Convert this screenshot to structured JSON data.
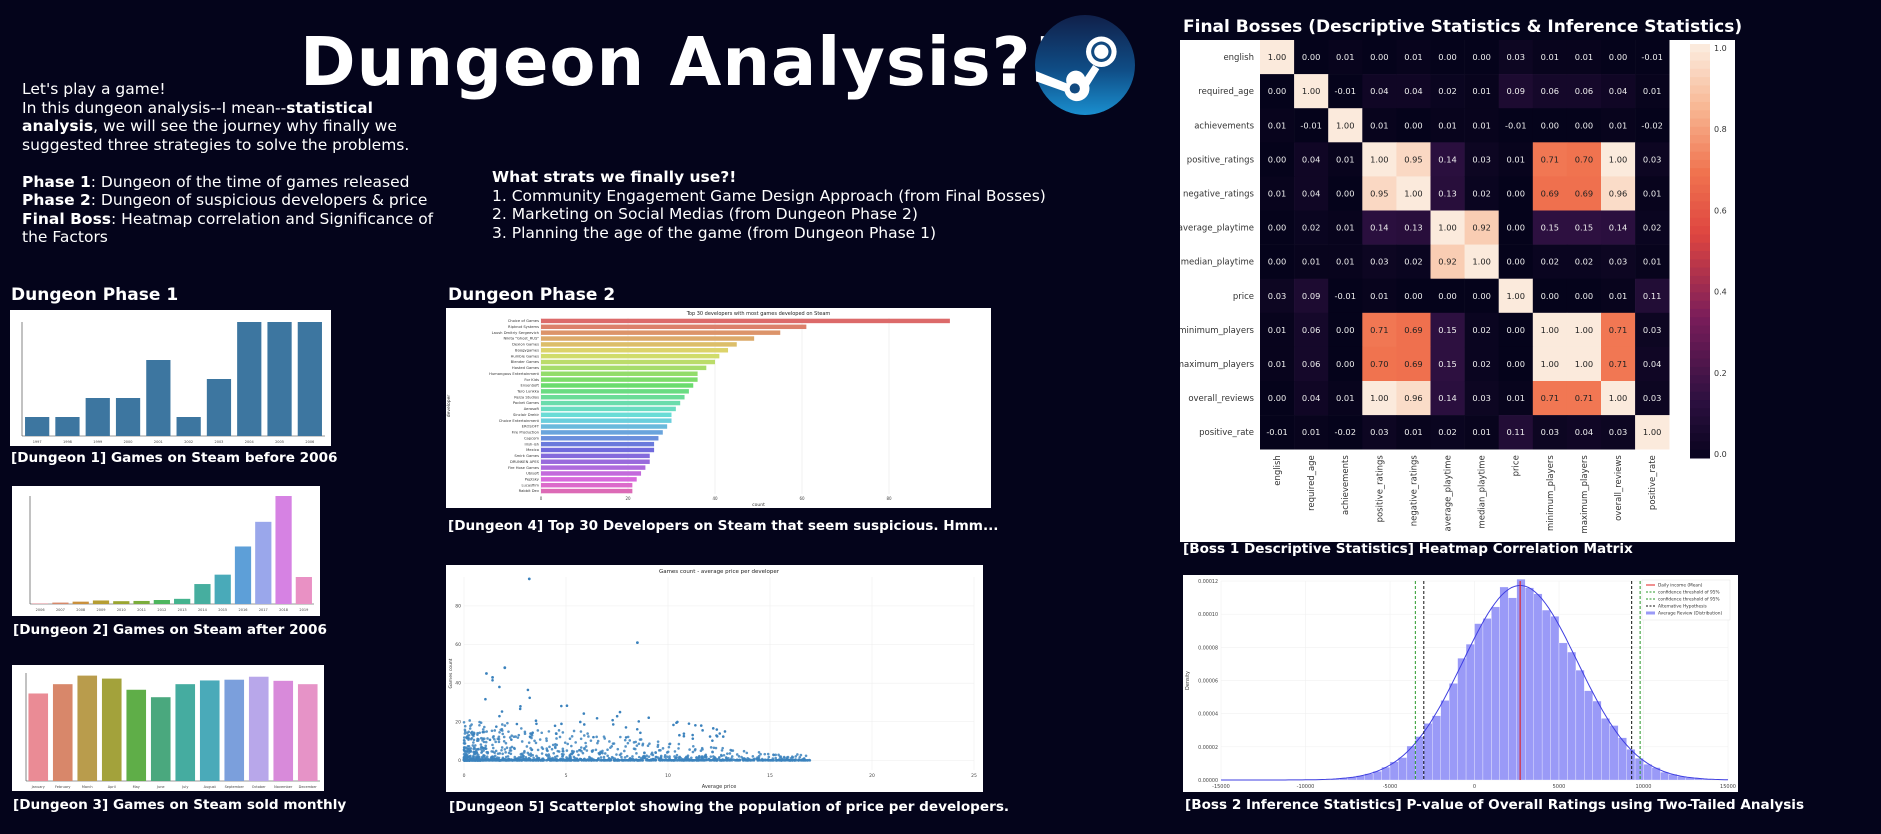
{
  "header": {
    "title": "Dungeon Analysis?!",
    "logo_icon": "steam-logo-icon"
  },
  "intro": {
    "line1": "Let's play a game!",
    "line2_pre": "In this dungeon analysis--I mean--",
    "line2_bold": "statistical analysis",
    "line2_post": ", we will see the journey why finally we suggested three strategies to solve the problems.",
    "phase1_label": "Phase 1",
    "phase1_text": ": Dungeon of the time of games released",
    "phase2_label": "Phase 2",
    "phase2_text": ": Dungeon of suspicious developers & price",
    "boss_label": "Final Boss",
    "boss_text": ": Heatmap correlation and Significance of the Factors"
  },
  "strategies": {
    "heading": "What strats we finally use?!",
    "items": [
      "1. Community Engagement Game Design Approach (from Final Bosses)",
      "2. Marketing on Social Medias (from Dungeon Phase 2)",
      "3. Planning the age of the game (from Dungeon Phase 1)"
    ]
  },
  "sections": {
    "phase1": "Dungeon Phase 1",
    "phase2": "Dungeon Phase 2",
    "final": "Final Bosses (Descriptive Statistics & Inference Statistics)"
  },
  "captions": {
    "d1": "[Dungeon 1] Games on Steam before 2006",
    "d2": "[Dungeon 2] Games on Steam after 2006",
    "d3": "[Dungeon 3] Games on Steam sold monthly",
    "d4": "[Dungeon 4] Top 30 Developers on Steam that seem suspicious. Hmm...",
    "d5": "[Dungeon 5] Scatterplot showing the population of price per developers.",
    "b1": "[Boss 1 Descriptive Statistics] Heatmap Correlation Matrix",
    "b2": "[Boss 2 Inference Statistics] P-value of Overall Ratings using Two-Tailed Analysis"
  },
  "colors": {
    "background": "#04041b",
    "bar_blue": "#3d76a0",
    "scatter_blue": "#3b82bd",
    "hist_fill": "#9a9af7",
    "hist_line": "#3f3fe0"
  },
  "chart_data": [
    {
      "id": "d1",
      "type": "bar",
      "title": "",
      "categories": [
        "1997",
        "1998",
        "1999",
        "2000",
        "2001",
        "2002",
        "2003",
        "2004",
        "2005",
        "2006"
      ],
      "values": [
        1,
        1,
        2,
        2,
        4,
        1,
        3,
        6,
        6,
        6
      ],
      "ylim": [
        0,
        6
      ],
      "xlabel": "",
      "ylabel": ""
    },
    {
      "id": "d2",
      "type": "bar",
      "title": "",
      "categories": [
        "2006",
        "2007",
        "2008",
        "2009",
        "2010",
        "2011",
        "2012",
        "2013",
        "2014",
        "2015",
        "2016",
        "2017",
        "2018",
        "2019"
      ],
      "values": [
        20,
        60,
        100,
        150,
        120,
        130,
        170,
        220,
        850,
        1250,
        2450,
        3500,
        4600,
        1150
      ],
      "colors": [
        "#e0838d",
        "#d7896b",
        "#c9903d",
        "#b59d32",
        "#9aa531",
        "#7bad3c",
        "#4db65e",
        "#44b38e",
        "#46ae9f",
        "#49aab9",
        "#5d9fd8",
        "#9aa7eb",
        "#d682e3",
        "#e991c4"
      ],
      "ylim": [
        0,
        4600
      ]
    },
    {
      "id": "d3",
      "type": "bar",
      "title": "",
      "categories": [
        "January",
        "February",
        "March",
        "April",
        "May",
        "June",
        "July",
        "August",
        "September",
        "October",
        "November",
        "December"
      ],
      "values": [
        2350,
        2600,
        2830,
        2750,
        2450,
        2250,
        2600,
        2700,
        2720,
        2800,
        2690,
        2600
      ],
      "colors": [
        "#ea8b95",
        "#d8876a",
        "#b99c4c",
        "#a3a23b",
        "#5fae48",
        "#4aa87e",
        "#45aca0",
        "#4aaab9",
        "#7b9fdc",
        "#b8a7ea",
        "#d88ada",
        "#e693c7"
      ],
      "ylim": [
        0,
        2900
      ]
    },
    {
      "id": "d4",
      "type": "bar",
      "orientation": "horizontal",
      "title": "Top 30 developers with most games developed on Steam",
      "xlabel": "count",
      "ylabel": "developer",
      "categories": [
        "Choice of Games",
        "Ripknot Systems",
        "Laush Dmitriy Sergeevich",
        "Nikita \"Ghost_RUS\"",
        "Dexion Games",
        "Boogygames",
        "Humble Games",
        "Blender Games",
        "Hosted Games",
        "Humongous Entertainment",
        "For Kids",
        "EnsenSoft",
        "Tero Lunkka",
        "Reiza Studios",
        "Pocket Games",
        "Aerosoft",
        "Sinclair Drekir",
        "Choice Entertainment",
        "EROSOFT",
        "Fire Production",
        "Capcom",
        "Irish-ish",
        "Mexico",
        "Smirk Games",
        "DRUNKEN APES",
        "Fire Hose Games",
        "Ubisoft",
        "Peptsky",
        "Lucasfilm",
        "Rabbit Dev"
      ],
      "values": [
        94,
        61,
        55,
        49,
        45,
        43,
        41,
        40,
        38,
        36,
        36,
        35,
        34,
        33,
        32,
        31,
        30,
        30,
        29,
        28,
        27,
        26,
        26,
        25,
        25,
        24,
        23,
        22,
        21,
        21
      ],
      "xlim": [
        0,
        100
      ]
    },
    {
      "id": "d5",
      "type": "scatter",
      "title": "Games count - average price per developer",
      "xlabel": "Average price",
      "ylabel": "Games count",
      "xlim": [
        0,
        25
      ],
      "ylim": [
        -5,
        95
      ],
      "highlights": [
        [
          3.2,
          94
        ],
        [
          8.5,
          61
        ],
        [
          1.1,
          45
        ],
        [
          2.0,
          48
        ],
        [
          1.4,
          43
        ]
      ]
    },
    {
      "id": "b1",
      "type": "heatmap",
      "labels": [
        "english",
        "required_age",
        "achievements",
        "positive_ratings",
        "negative_ratings",
        "average_playtime",
        "median_playtime",
        "price",
        "minimum_players",
        "maximum_players",
        "overall_reviews",
        "positive_rate"
      ],
      "values": [
        [
          1.0,
          -0.0,
          0.01,
          0.0,
          0.01,
          -0.0,
          -0.0,
          0.03,
          0.01,
          0.01,
          0.0,
          -0.01
        ],
        [
          -0.0,
          1.0,
          -0.01,
          0.04,
          0.04,
          0.02,
          0.01,
          0.09,
          0.06,
          0.06,
          0.04,
          0.01
        ],
        [
          0.01,
          -0.01,
          1.0,
          0.01,
          0.0,
          0.01,
          0.01,
          -0.01,
          0.0,
          0.0,
          0.01,
          -0.02
        ],
        [
          0.0,
          0.04,
          0.01,
          1.0,
          0.95,
          0.14,
          0.03,
          0.01,
          0.71,
          0.7,
          1.0,
          0.03
        ],
        [
          0.01,
          0.04,
          0.0,
          0.95,
          1.0,
          0.13,
          0.02,
          0.0,
          0.69,
          0.69,
          0.96,
          0.01
        ],
        [
          -0.0,
          0.02,
          0.01,
          0.14,
          0.13,
          1.0,
          0.92,
          -0.0,
          0.15,
          0.15,
          0.14,
          0.02
        ],
        [
          -0.0,
          0.01,
          0.01,
          0.03,
          0.02,
          0.92,
          1.0,
          -0.0,
          0.02,
          0.02,
          0.03,
          0.01
        ],
        [
          0.03,
          0.09,
          -0.01,
          0.01,
          0.0,
          -0.0,
          -0.0,
          1.0,
          0.0,
          0.0,
          0.01,
          0.11
        ],
        [
          0.01,
          0.06,
          0.0,
          0.71,
          0.69,
          0.15,
          0.02,
          0.0,
          1.0,
          1.0,
          0.71,
          0.03
        ],
        [
          0.01,
          0.06,
          0.0,
          0.7,
          0.69,
          0.15,
          0.02,
          0.0,
          1.0,
          1.0,
          0.71,
          0.04
        ],
        [
          0.0,
          0.04,
          0.01,
          1.0,
          0.96,
          0.14,
          0.03,
          0.01,
          0.71,
          0.71,
          1.0,
          0.03
        ],
        [
          -0.01,
          0.01,
          -0.02,
          0.03,
          0.01,
          0.02,
          0.01,
          0.11,
          0.03,
          0.04,
          0.03,
          1.0
        ]
      ],
      "colorbar_ticks": [
        "1.0",
        "0.8",
        "0.6",
        "0.4",
        "0.2",
        "0.0"
      ]
    },
    {
      "id": "b2",
      "type": "histogram",
      "xlabel": "",
      "ylabel": "Density",
      "xlim": [
        -15000,
        15000
      ],
      "ylim": [
        0,
        0.00012
      ],
      "x_ticks": [
        "-15000",
        "-10000",
        "-5000",
        "0",
        "5000",
        "10000",
        "15000"
      ],
      "y_ticks": [
        "0.00000",
        "0.00002",
        "0.00004",
        "0.00006",
        "0.00008",
        "0.00010",
        "0.00012"
      ],
      "mean": 2700,
      "std": 3400,
      "ci95": [
        -3500,
        9800
      ],
      "alt_hypothesis": [
        -3000,
        9300
      ],
      "legend": [
        "Daily income (Mean)",
        "confidence threshold of 95%",
        "confidence threshold of 95%",
        "Alternative Hypothesis",
        "Average Review (Distribution)"
      ]
    }
  ]
}
